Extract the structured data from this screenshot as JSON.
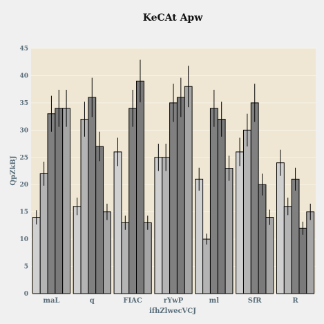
{
  "chart_data": {
    "type": "bar",
    "title": "KeCAt Apw",
    "xlabel": "ifhZlwecVCJ",
    "ylabel": "QpZkBJ",
    "ylim": [
      0,
      45
    ],
    "yticks": [
      0,
      5,
      10,
      15,
      20,
      25,
      30,
      35,
      40,
      45
    ],
    "grid": true,
    "legend": "none",
    "categories": [
      "maL",
      "q",
      "FIAC",
      "rYwP",
      "ml",
      "SfR",
      "R"
    ],
    "series": [
      {
        "values": [
          14,
          16,
          26,
          25,
          21,
          26,
          24
        ],
        "errors": [
          1.3,
          1.6,
          2.6,
          2.5,
          2.1,
          2.6,
          2.4
        ],
        "color": "#d0d0d0"
      },
      {
        "values": [
          22,
          32,
          13,
          25,
          10,
          30,
          16
        ],
        "errors": [
          2.2,
          3.2,
          1.3,
          2.5,
          1.0,
          3.0,
          1.6
        ],
        "color": "#b4b4b4"
      },
      {
        "values": [
          33,
          36,
          34,
          35,
          34,
          35,
          21
        ],
        "errors": [
          3.3,
          3.6,
          3.4,
          3.5,
          3.4,
          3.5,
          2.1
        ],
        "color": "#808080"
      },
      {
        "values": [
          34,
          27,
          39,
          36,
          32,
          20,
          12
        ],
        "errors": [
          3.4,
          2.7,
          3.9,
          3.6,
          3.2,
          2.0,
          1.2
        ],
        "color": "#7a7a7a"
      },
      {
        "values": [
          34,
          15,
          13,
          38,
          23,
          14,
          15
        ],
        "errors": [
          3.4,
          1.5,
          1.3,
          3.8,
          2.3,
          1.4,
          1.5
        ],
        "color": "#a6a6a6"
      }
    ],
    "colors": {
      "plot_bg": "#efe7d3",
      "grid": "#f7f3e8",
      "page_bg": "#f0f0f0"
    }
  }
}
